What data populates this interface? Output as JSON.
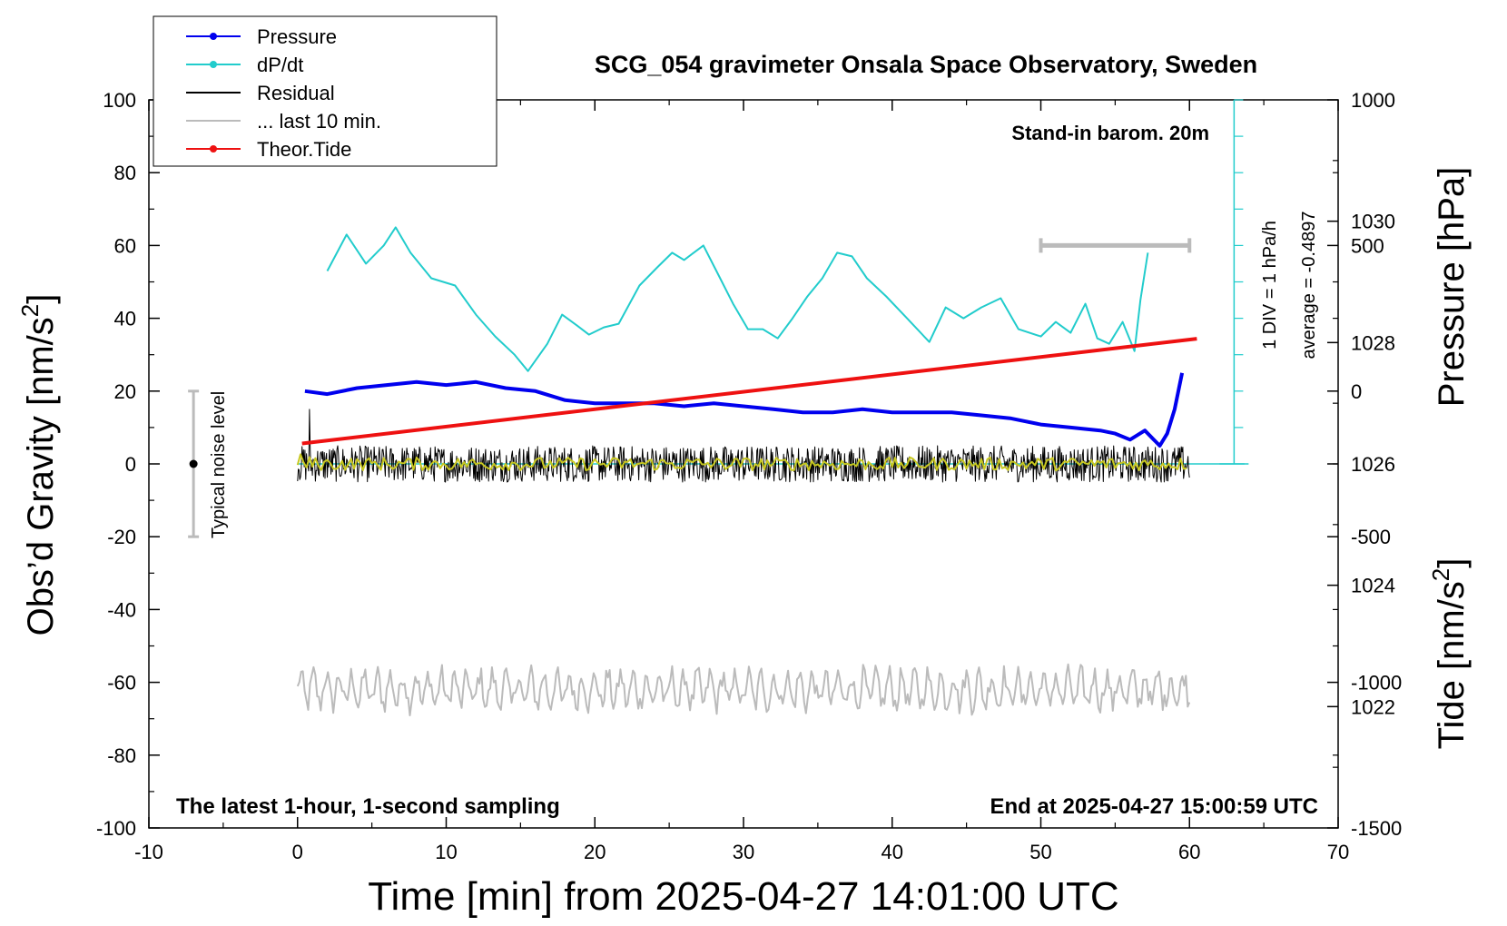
{
  "chart_data": {
    "type": "line",
    "title": "SCG_054 gravimeter Onsala Space Observatory, Sweden",
    "xlabel": "Time [min] from 2025-04-27 14:01:00 UTC",
    "ylabel_left_prefix": "Obs’d Gravity [nm/s",
    "ylabel_left_sup": "2",
    "ylabel_left_suffix": "]",
    "ylabel_right_pressure": "Pressure [hPa]",
    "ylabel_right_tide_prefix": "Tide [nm/s",
    "ylabel_right_tide_sup": "2",
    "ylabel_right_tide_suffix": "]",
    "xlim": [
      -10,
      70
    ],
    "ylim": [
      -100,
      100
    ],
    "pressure_ylim": [
      1020,
      1032
    ],
    "tide_ylim": [
      -1500,
      1000
    ],
    "x_ticks": [
      -10,
      0,
      10,
      20,
      30,
      40,
      50,
      60,
      70
    ],
    "x_tick_labels": [
      "-10",
      "0",
      "10",
      "20",
      "30",
      "40",
      "50",
      "60",
      "70"
    ],
    "y_ticks": [
      -100,
      -80,
      -60,
      -40,
      -20,
      0,
      20,
      40,
      60,
      80,
      100
    ],
    "y_tick_labels": [
      "-100",
      "-80",
      "-60",
      "-40",
      "-20",
      "0",
      "20",
      "40",
      "60",
      "80",
      "100"
    ],
    "pressure_ticks": [
      1022,
      1024,
      1026,
      1028,
      1030
    ],
    "pressure_tick_labels": [
      "1022",
      "1024",
      "1026",
      "1028",
      "1030"
    ],
    "tide_ticks": [
      -1500,
      -1000,
      -500,
      0,
      500,
      1000
    ],
    "tide_tick_labels": [
      "-1500",
      "-1000",
      "-500",
      "0",
      "500",
      "1000"
    ],
    "legend": {
      "placement": "top-left",
      "entries": [
        {
          "label": "Pressure",
          "color": "#0000ee",
          "marker": true
        },
        {
          "label": "dP/dt",
          "color": "#22cccc",
          "marker": true
        },
        {
          "label": "Residual",
          "color": "#000000",
          "marker": false
        },
        {
          "label": "... last 10 min.",
          "color": "#bbbbbb",
          "marker": false
        },
        {
          "label": "Theor.Tide",
          "color": "#ee1111",
          "marker": true
        }
      ]
    },
    "annotations": {
      "barometer": "Stand-in barom. 20m",
      "latest": "The latest 1-hour, 1-second sampling",
      "end_at": "End at 2025-04-27 15:00:59 UTC",
      "noise": "Typical noise level",
      "div": "1 DIV = 1 hPa/h",
      "average": "average = -0.4897"
    },
    "noise_bar": {
      "x": -7,
      "center": 0,
      "low": -20,
      "high": 20
    },
    "last10_bar": {
      "x_start": 50,
      "x_end": 60,
      "tide_level": 500
    },
    "dpdt_zero_level": 1026,
    "dpdt_scale": {
      "x": 63,
      "y_min": 0,
      "y_max": 100
    },
    "series": [
      {
        "name": "Pressure",
        "axis": "pressure",
        "color": "#0000ee",
        "x": [
          0.5,
          2,
          4,
          6,
          8,
          10,
          12,
          14,
          16,
          18,
          20,
          22,
          24,
          26,
          28,
          30,
          32,
          34,
          36,
          38,
          40,
          42,
          44,
          46,
          48,
          50,
          52,
          54,
          55,
          56,
          57,
          58,
          58.5,
          59,
          59.5
        ],
        "y": [
          1027.2,
          1027.15,
          1027.25,
          1027.3,
          1027.35,
          1027.3,
          1027.35,
          1027.25,
          1027.2,
          1027.05,
          1027.0,
          1027.0,
          1027.0,
          1026.95,
          1027.0,
          1026.95,
          1026.9,
          1026.85,
          1026.85,
          1026.9,
          1026.85,
          1026.85,
          1026.85,
          1026.8,
          1026.75,
          1026.65,
          1026.6,
          1026.55,
          1026.5,
          1026.4,
          1026.55,
          1026.3,
          1026.5,
          1026.9,
          1027.5
        ]
      },
      {
        "name": "dP/dt",
        "axis": "gravity",
        "color": "#22cccc",
        "x": [
          2,
          3.3,
          4.6,
          5.8,
          6.6,
          7.6,
          9,
          10.6,
          12,
          13.3,
          14.6,
          15.5,
          16.8,
          17.8,
          18.8,
          19.6,
          20.6,
          21.6,
          23,
          24.2,
          25.2,
          26,
          27.3,
          28.3,
          29.3,
          30.3,
          31.3,
          32.3,
          33.3,
          34.3,
          35.3,
          36.3,
          37.3,
          38.3,
          39.6,
          41,
          42.5,
          43.6,
          44.8,
          46,
          47.3,
          48.5,
          50,
          51,
          52,
          53,
          53.8,
          54.6,
          55.5,
          56.3,
          56.7,
          57.2
        ],
        "y": [
          53,
          63,
          55,
          60,
          65,
          58,
          51,
          49,
          41,
          35,
          30,
          25.5,
          33,
          41,
          38,
          35.5,
          37.5,
          38.5,
          49,
          54,
          58,
          56,
          60,
          52,
          44,
          37,
          37,
          34.5,
          40,
          46,
          51,
          58,
          57,
          51,
          46,
          40,
          33.5,
          43,
          40,
          43,
          45.5,
          37,
          35,
          39,
          36,
          44,
          34.5,
          33,
          39,
          31,
          45,
          58
        ]
      },
      {
        "name": "Residual",
        "axis": "gravity",
        "color": "#000000",
        "x_start": 0,
        "x_end": 60,
        "amplitude": 5,
        "spike_x": 0.8,
        "spike_value": 15
      },
      {
        "name": "Residual smoothed",
        "axis": "gravity",
        "color": "#c8c820",
        "x_start": 0,
        "x_end": 60,
        "amplitude": 1.8
      },
      {
        "name": "... last 10 min.",
        "axis": "gravity",
        "color": "#bbbbbb",
        "x_start": 0,
        "x_end": 60,
        "baseline": -62,
        "amplitude": 6
      },
      {
        "name": "Theor.Tide",
        "axis": "tide",
        "color": "#ee1111",
        "x": [
          0.3,
          60.5
        ],
        "y": [
          -180,
          180
        ]
      }
    ]
  }
}
